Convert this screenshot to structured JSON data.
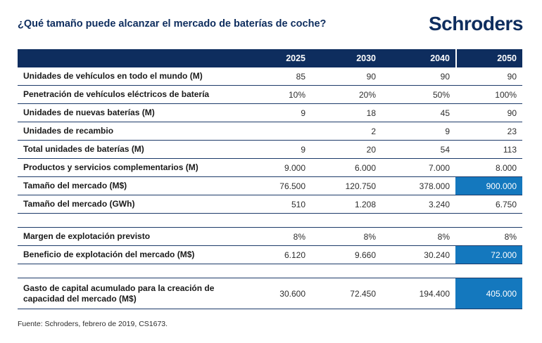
{
  "page": {
    "title": "¿Qué tamaño puede alcanzar el mercado de baterías de coche?",
    "logo": "Schroders",
    "source": "Fuente: Schroders, febrero de 2019, CS1673."
  },
  "colors": {
    "navy": "#0e2d5e",
    "highlight_blue": "#1478be",
    "row_border": "#1c3a69",
    "text_dark": "#1a1a1a"
  },
  "chart_data": {
    "type": "table",
    "title": "¿Qué tamaño puede alcanzar el mercado de baterías de coche?",
    "columns": [
      "2025",
      "2030",
      "2040",
      "2050"
    ],
    "blocks": [
      {
        "rows": [
          {
            "label": "Unidades de vehículos en todo el mundo (M)",
            "values": [
              "85",
              "90",
              "90",
              "90"
            ]
          },
          {
            "label": "Penetración de vehículos eléctricos de batería",
            "values": [
              "10%",
              "20%",
              "50%",
              "100%"
            ]
          },
          {
            "label": "Unidades de nuevas baterías (M)",
            "values": [
              "9",
              "18",
              "45",
              "90"
            ]
          },
          {
            "label": "Unidades de recambio",
            "values": [
              "",
              "2",
              "9",
              "23"
            ]
          },
          {
            "label": "Total unidades de baterías (M)",
            "values": [
              "9",
              "20",
              "54",
              "113"
            ]
          },
          {
            "label": "Productos y servicios complementarios (M)",
            "values": [
              "9.000",
              "6.000",
              "7.000",
              "8.000"
            ]
          },
          {
            "label": "Tamaño del mercado (M$)",
            "values": [
              "76.500",
              "120.750",
              "378.000",
              "900.000"
            ],
            "highlight_last": true
          },
          {
            "label": "Tamaño del mercado (GWh)",
            "values": [
              "510",
              "1.208",
              "3.240",
              "6.750"
            ]
          }
        ]
      },
      {
        "rows": [
          {
            "label": "Margen de explotación previsto",
            "values": [
              "8%",
              "8%",
              "8%",
              "8%"
            ]
          },
          {
            "label": "Beneficio de explotación del mercado (M$)",
            "values": [
              "6.120",
              "9.660",
              "30.240",
              "72.000"
            ],
            "highlight_last": true
          }
        ]
      },
      {
        "rows": [
          {
            "label": "Gasto de capital acumulado para la creación de capacidad del mercado (M$)",
            "values": [
              "30.600",
              "72.450",
              "194.400",
              "405.000"
            ],
            "highlight_last": true,
            "tall": true
          }
        ]
      }
    ],
    "source": "Fuente: Schroders, febrero de 2019, CS1673."
  }
}
